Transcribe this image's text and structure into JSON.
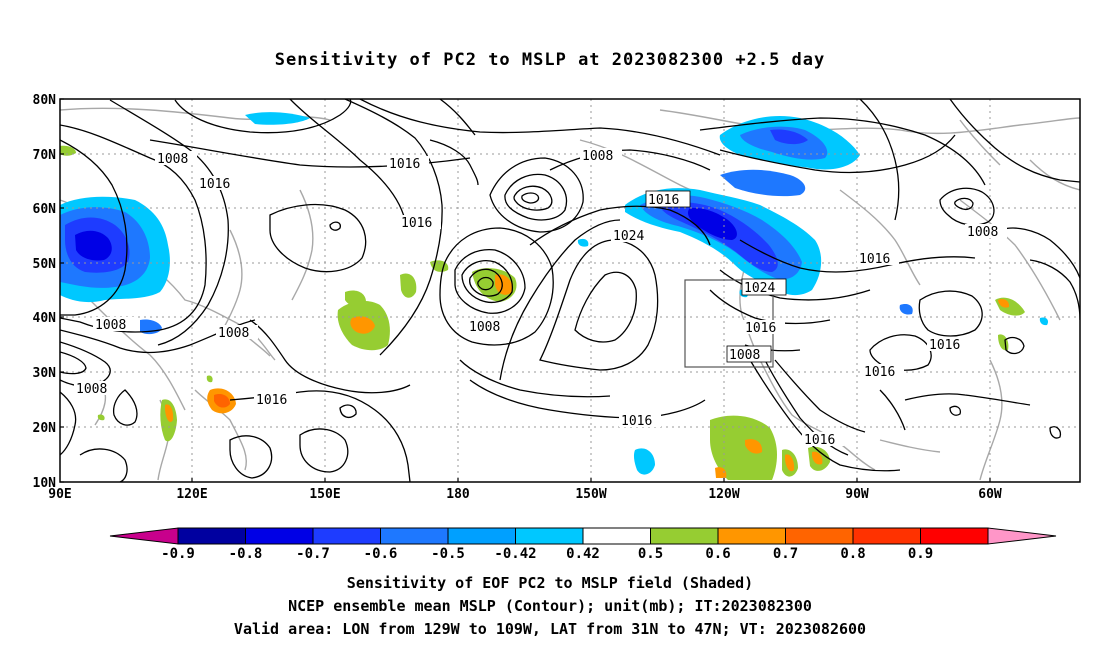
{
  "title": "Sensitivity of PC2 to MSLP at 2023082300 +2.5 day",
  "lat_labels": [
    "80N",
    "70N",
    "60N",
    "50N",
    "40N",
    "30N",
    "20N",
    "10N"
  ],
  "lon_labels": [
    "90E",
    "120E",
    "150E",
    "180",
    "150W",
    "120W",
    "90W",
    "60W"
  ],
  "contour_labels": {
    "c1008a": "1008",
    "c1008b": "1008",
    "c1008c": "1008",
    "c1008d": "1008",
    "c1008e": "1008",
    "c1008f": "1008",
    "c1008g": "1008",
    "c1008h": "1008",
    "c1016a": "1016",
    "c1016b": "1016",
    "c1016c": "1016",
    "c1016d": "1016",
    "c1016e": "1016",
    "c1016f": "1016",
    "c1016g": "1016",
    "c1016h": "1016",
    "c1016i": "1016",
    "c1016j": "1016",
    "c1016k": "1016",
    "c1024a": "1024",
    "c1024b": "1024"
  },
  "colorbar": {
    "labels": [
      "-0.9",
      "-0.8",
      "-0.7",
      "-0.6",
      "-0.5",
      "-0.42",
      "0.42",
      "0.5",
      "0.6",
      "0.7",
      "0.8",
      "0.9"
    ],
    "colors": [
      "#c8008c",
      "#0000a0",
      "#0000e6",
      "#1e3cff",
      "#1e78ff",
      "#00a0ff",
      "#00c8ff",
      "#ffffff",
      "#96cd32",
      "#ff9600",
      "#ff6400",
      "#ff3200",
      "#ff0000",
      "#ff96c8"
    ]
  },
  "caption": {
    "line1": "Sensitivity of EOF PC2 to MSLP field (Shaded)",
    "line2": "NCEP ensemble mean MSLP (Contour); unit(mb); IT:2023082300",
    "line3": "Valid area: LON from 129W to 109W, LAT from 31N to 47N; VT: 2023082600"
  }
}
